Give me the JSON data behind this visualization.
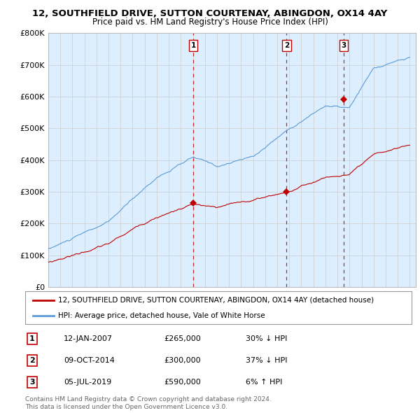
{
  "title": "12, SOUTHFIELD DRIVE, SUTTON COURTENAY, ABINGDON, OX14 4AY",
  "subtitle": "Price paid vs. HM Land Registry's House Price Index (HPI)",
  "xlim_start": 1995.0,
  "xlim_end": 2025.5,
  "ylim": [
    0,
    800000
  ],
  "yticks": [
    0,
    100000,
    200000,
    300000,
    400000,
    500000,
    600000,
    700000,
    800000
  ],
  "ytick_labels": [
    "£0",
    "£100K",
    "£200K",
    "£300K",
    "£400K",
    "£500K",
    "£600K",
    "£700K",
    "£800K"
  ],
  "hpi_color": "#5b9bd5",
  "price_color": "#c00000",
  "vline_color": "#c00000",
  "chart_bg_color": "#ddeeff",
  "transactions": [
    {
      "date_num": 2007.04,
      "price": 265000,
      "label": "1"
    },
    {
      "date_num": 2014.77,
      "price": 300000,
      "label": "2"
    },
    {
      "date_num": 2019.51,
      "price": 590000,
      "label": "3"
    }
  ],
  "legend_entries": [
    "12, SOUTHFIELD DRIVE, SUTTON COURTENAY, ABINGDON, OX14 4AY (detached house)",
    "HPI: Average price, detached house, Vale of White Horse"
  ],
  "table_rows": [
    {
      "num": "1",
      "date": "12-JAN-2007",
      "price": "£265,000",
      "hpi": "30% ↓ HPI"
    },
    {
      "num": "2",
      "date": "09-OCT-2014",
      "price": "£300,000",
      "hpi": "37% ↓ HPI"
    },
    {
      "num": "3",
      "date": "05-JUL-2019",
      "price": "£590,000",
      "hpi": "6% ↑ HPI"
    }
  ],
  "footer": "Contains HM Land Registry data © Crown copyright and database right 2024.\nThis data is licensed under the Open Government Licence v3.0.",
  "background_color": "#ffffff",
  "grid_color": "#cccccc"
}
